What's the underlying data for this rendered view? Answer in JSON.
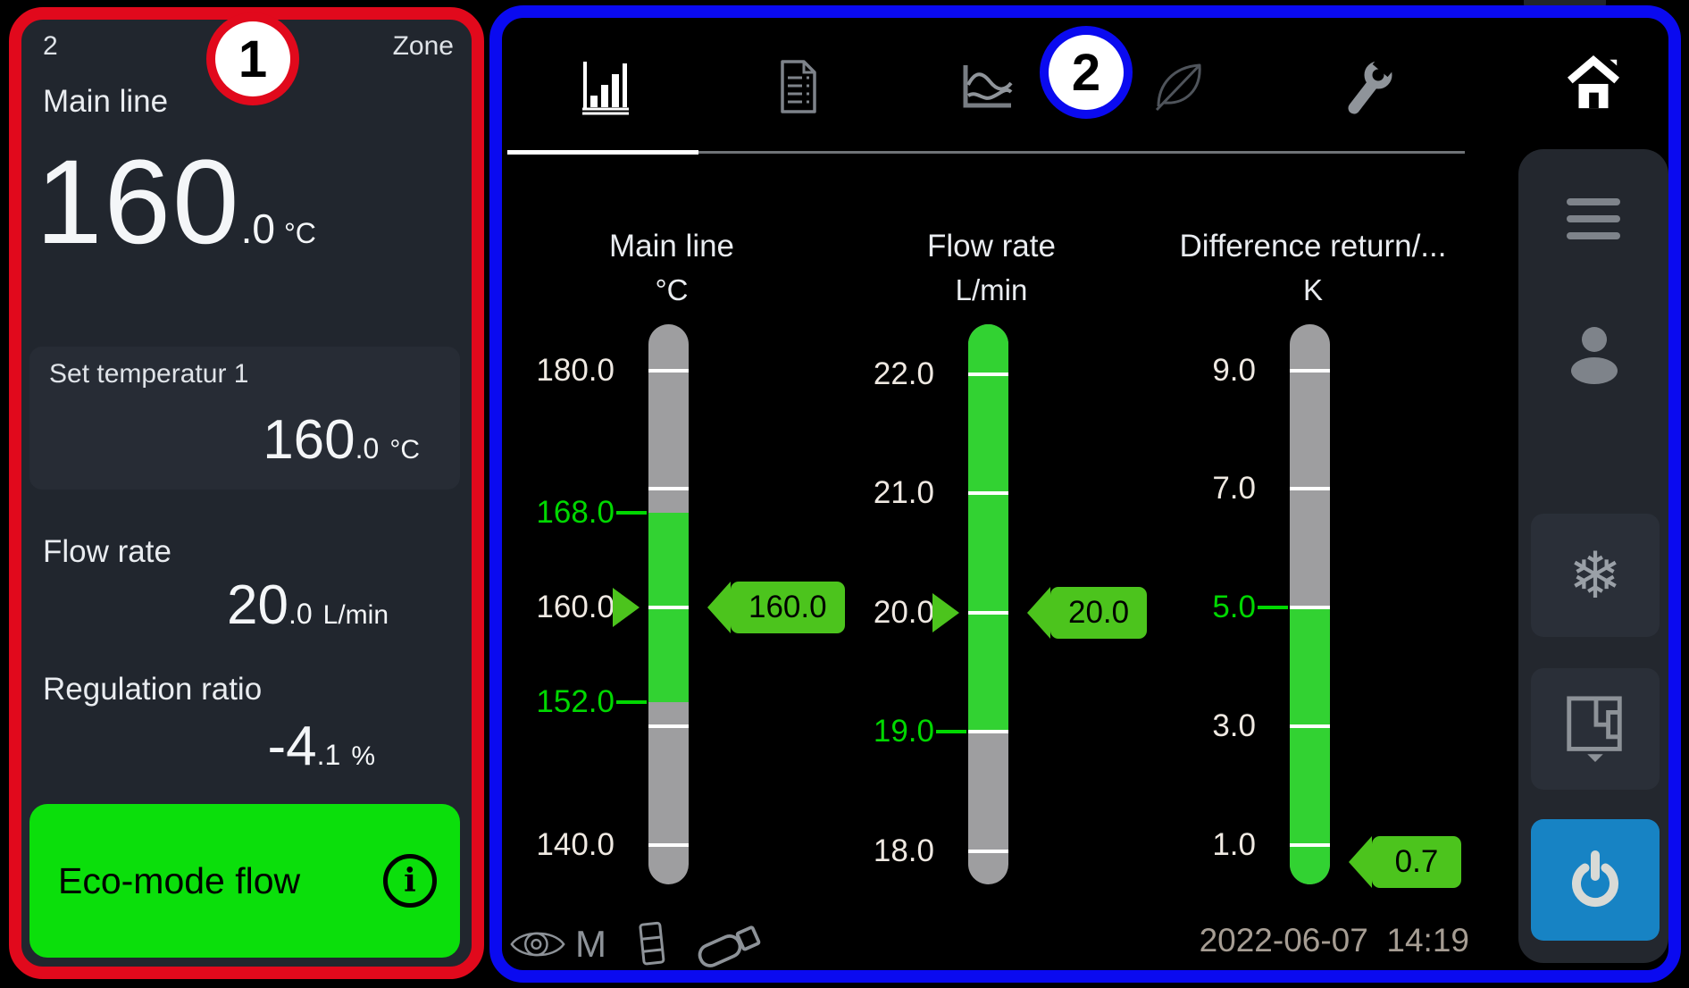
{
  "colors": {
    "red_frame": "#e1091c",
    "blue_frame": "#0a0af0",
    "eco_green": "#0bdf0b",
    "zone_green": "#32d232",
    "tag_green": "#4cc41d",
    "limit_green": "#00d800",
    "tube_gray": "#9e9ea0",
    "power_blue": "#1783c4"
  },
  "zone_panel": {
    "badge": "1",
    "zone_number": "2",
    "zone_label": "Zone",
    "main_line": {
      "label": "Main line",
      "value": "160",
      "decimal": ".0",
      "unit": "°C"
    },
    "set_temperature": {
      "label": "Set temperatur 1",
      "value": "160",
      "decimal": ".0",
      "unit": "°C"
    },
    "flow_rate": {
      "label": "Flow rate",
      "value": "20",
      "decimal": ".0",
      "unit": "L/min"
    },
    "regulation_ratio": {
      "label": "Regulation ratio",
      "value": "-4",
      "decimal": ".1",
      "unit": "%"
    },
    "eco_button": {
      "label": "Eco-mode flow",
      "info_glyph": "i"
    }
  },
  "monitor_panel": {
    "badge": "2",
    "tabs": [
      {
        "name": "bar-chart",
        "active": true
      },
      {
        "name": "report",
        "active": false
      },
      {
        "name": "trends",
        "active": false
      },
      {
        "name": "eco-leaf",
        "active": false
      },
      {
        "name": "service-wrench",
        "active": false
      }
    ],
    "status_bar": {
      "monitor_letter": "M"
    },
    "timestamp": {
      "date": "2022-06-07",
      "time": "14:19"
    },
    "sidebar": {
      "snowflake_glyph": "❄"
    },
    "gauges": [
      {
        "title": "Main line",
        "unit": "°C",
        "scale": {
          "top_value": 183.9,
          "bottom_value": 136.65
        },
        "ticks": [
          {
            "value": 180.0,
            "label": "180.0",
            "style": "white",
            "tube_line": true
          },
          {
            "value": 170.0,
            "label": null,
            "style": "white",
            "tube_line": true
          },
          {
            "value": 168.0,
            "label": "168.0",
            "style": "green",
            "tube_line": false
          },
          {
            "value": 160.0,
            "label": "160.0",
            "style": "white",
            "tube_line": true
          },
          {
            "value": 152.0,
            "label": "152.0",
            "style": "green",
            "tube_line": false
          },
          {
            "value": 150.0,
            "label": null,
            "style": "white",
            "tube_line": true
          },
          {
            "value": 140.0,
            "label": "140.0",
            "style": "white",
            "tube_line": true
          }
        ],
        "green_zone": {
          "from": 168.0,
          "to": 152.0
        },
        "setpoint": 160.0,
        "value": 160.0,
        "value_label": "160.0"
      },
      {
        "title": "Flow rate",
        "unit": "L/min",
        "scale": {
          "top_value": 22.42,
          "bottom_value": 17.72
        },
        "ticks": [
          {
            "value": 22.0,
            "label": "22.0",
            "style": "white",
            "tube_line": true
          },
          {
            "value": 21.0,
            "label": "21.0",
            "style": "white",
            "tube_line": true
          },
          {
            "value": 20.0,
            "label": "20.0",
            "style": "white",
            "tube_line": true
          },
          {
            "value": 19.0,
            "label": "19.0",
            "style": "green",
            "tube_line": true
          },
          {
            "value": 18.0,
            "label": "18.0",
            "style": "white",
            "tube_line": true
          }
        ],
        "green_zone": {
          "from": 22.42,
          "to": 19.0
        },
        "setpoint": 20.0,
        "value": 20.0,
        "value_label": "20.0"
      },
      {
        "title": "Difference return/...",
        "unit": "K",
        "scale": {
          "top_value": 9.78,
          "bottom_value": 0.33
        },
        "ticks": [
          {
            "value": 9.0,
            "label": "9.0",
            "style": "white",
            "tube_line": true
          },
          {
            "value": 7.0,
            "label": "7.0",
            "style": "white",
            "tube_line": true
          },
          {
            "value": 5.0,
            "label": "5.0",
            "style": "green",
            "tube_line": true
          },
          {
            "value": 3.0,
            "label": "3.0",
            "style": "white",
            "tube_line": true
          },
          {
            "value": 1.0,
            "label": "1.0",
            "style": "white",
            "tube_line": true
          }
        ],
        "green_zone": {
          "from": 5.0,
          "to": 0.33
        },
        "setpoint": null,
        "value": 0.7,
        "value_label": "0.7"
      }
    ]
  }
}
